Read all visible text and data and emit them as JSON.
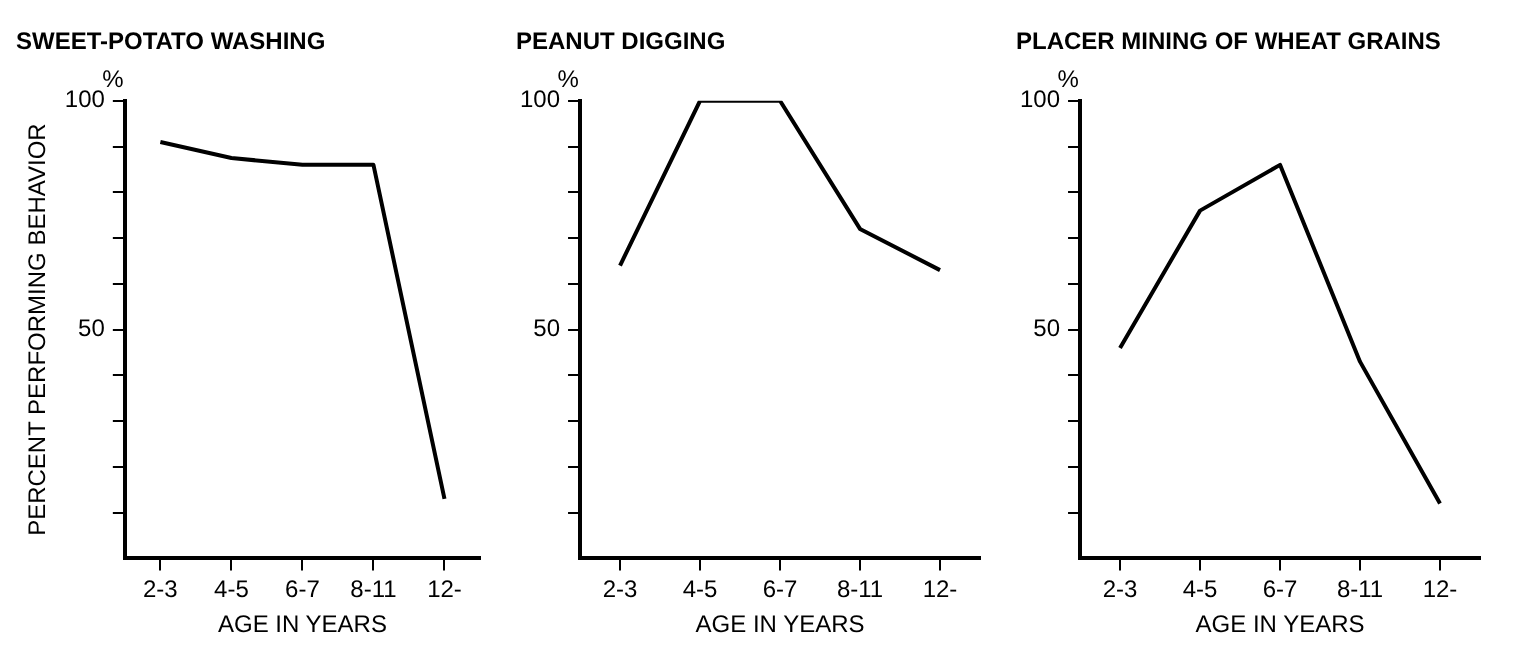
{
  "chart_data": [
    {
      "type": "line",
      "title": "SWEET-POTATO WASHING",
      "xlabel": "AGE IN YEARS",
      "ylabel": "PERCENT PERFORMING BEHAVIOR",
      "annotations": [
        "%"
      ],
      "categories": [
        "2-3",
        "4-5",
        "6-7",
        "8-11",
        "12-"
      ],
      "series": [
        {
          "color": "#000000",
          "values": [
            91,
            87.5,
            86,
            86,
            13
          ]
        }
      ],
      "ylim": [
        0,
        100
      ],
      "yticks": [
        {
          "value": 10,
          "label": null
        },
        {
          "value": 20,
          "label": null
        },
        {
          "value": 30,
          "label": null
        },
        {
          "value": 40,
          "label": null
        },
        {
          "value": 50,
          "label": "50"
        },
        {
          "value": 60,
          "label": null
        },
        {
          "value": 70,
          "label": null
        },
        {
          "value": 80,
          "label": null
        },
        {
          "value": 90,
          "label": null
        },
        {
          "value": 100,
          "label": "100"
        }
      ],
      "grid": false,
      "legend": false,
      "marker": "none",
      "line_style": "solid"
    },
    {
      "type": "line",
      "title": "PEANUT DIGGING",
      "xlabel": "AGE IN YEARS",
      "annotations": [
        "%"
      ],
      "categories": [
        "2-3",
        "4-5",
        "6-7",
        "8-11",
        "12-"
      ],
      "series": [
        {
          "color": "#000000",
          "values": [
            64,
            100,
            100,
            72,
            63
          ]
        }
      ],
      "ylim": [
        0,
        100
      ],
      "yticks": [
        {
          "value": 10,
          "label": null
        },
        {
          "value": 20,
          "label": null
        },
        {
          "value": 30,
          "label": null
        },
        {
          "value": 40,
          "label": null
        },
        {
          "value": 50,
          "label": "50"
        },
        {
          "value": 60,
          "label": null
        },
        {
          "value": 70,
          "label": null
        },
        {
          "value": 80,
          "label": null
        },
        {
          "value": 90,
          "label": null
        },
        {
          "value": 100,
          "label": "100"
        }
      ],
      "grid": false,
      "legend": false,
      "marker": "none",
      "line_style": "solid"
    },
    {
      "type": "line",
      "title": "PLACER MINING OF WHEAT GRAINS",
      "xlabel": "AGE IN YEARS",
      "annotations": [
        "%"
      ],
      "categories": [
        "2-3",
        "4-5",
        "6-7",
        "8-11",
        "12-"
      ],
      "series": [
        {
          "color": "#000000",
          "values": [
            46,
            76,
            86,
            43,
            12
          ]
        }
      ],
      "ylim": [
        0,
        100
      ],
      "yticks": [
        {
          "value": 10,
          "label": null
        },
        {
          "value": 20,
          "label": null
        },
        {
          "value": 30,
          "label": null
        },
        {
          "value": 40,
          "label": null
        },
        {
          "value": 50,
          "label": "50"
        },
        {
          "value": 60,
          "label": null
        },
        {
          "value": 70,
          "label": null
        },
        {
          "value": 80,
          "label": null
        },
        {
          "value": 90,
          "label": null
        },
        {
          "value": 100,
          "label": "100"
        }
      ],
      "grid": false,
      "legend": false,
      "marker": "none",
      "line_style": "solid"
    }
  ]
}
